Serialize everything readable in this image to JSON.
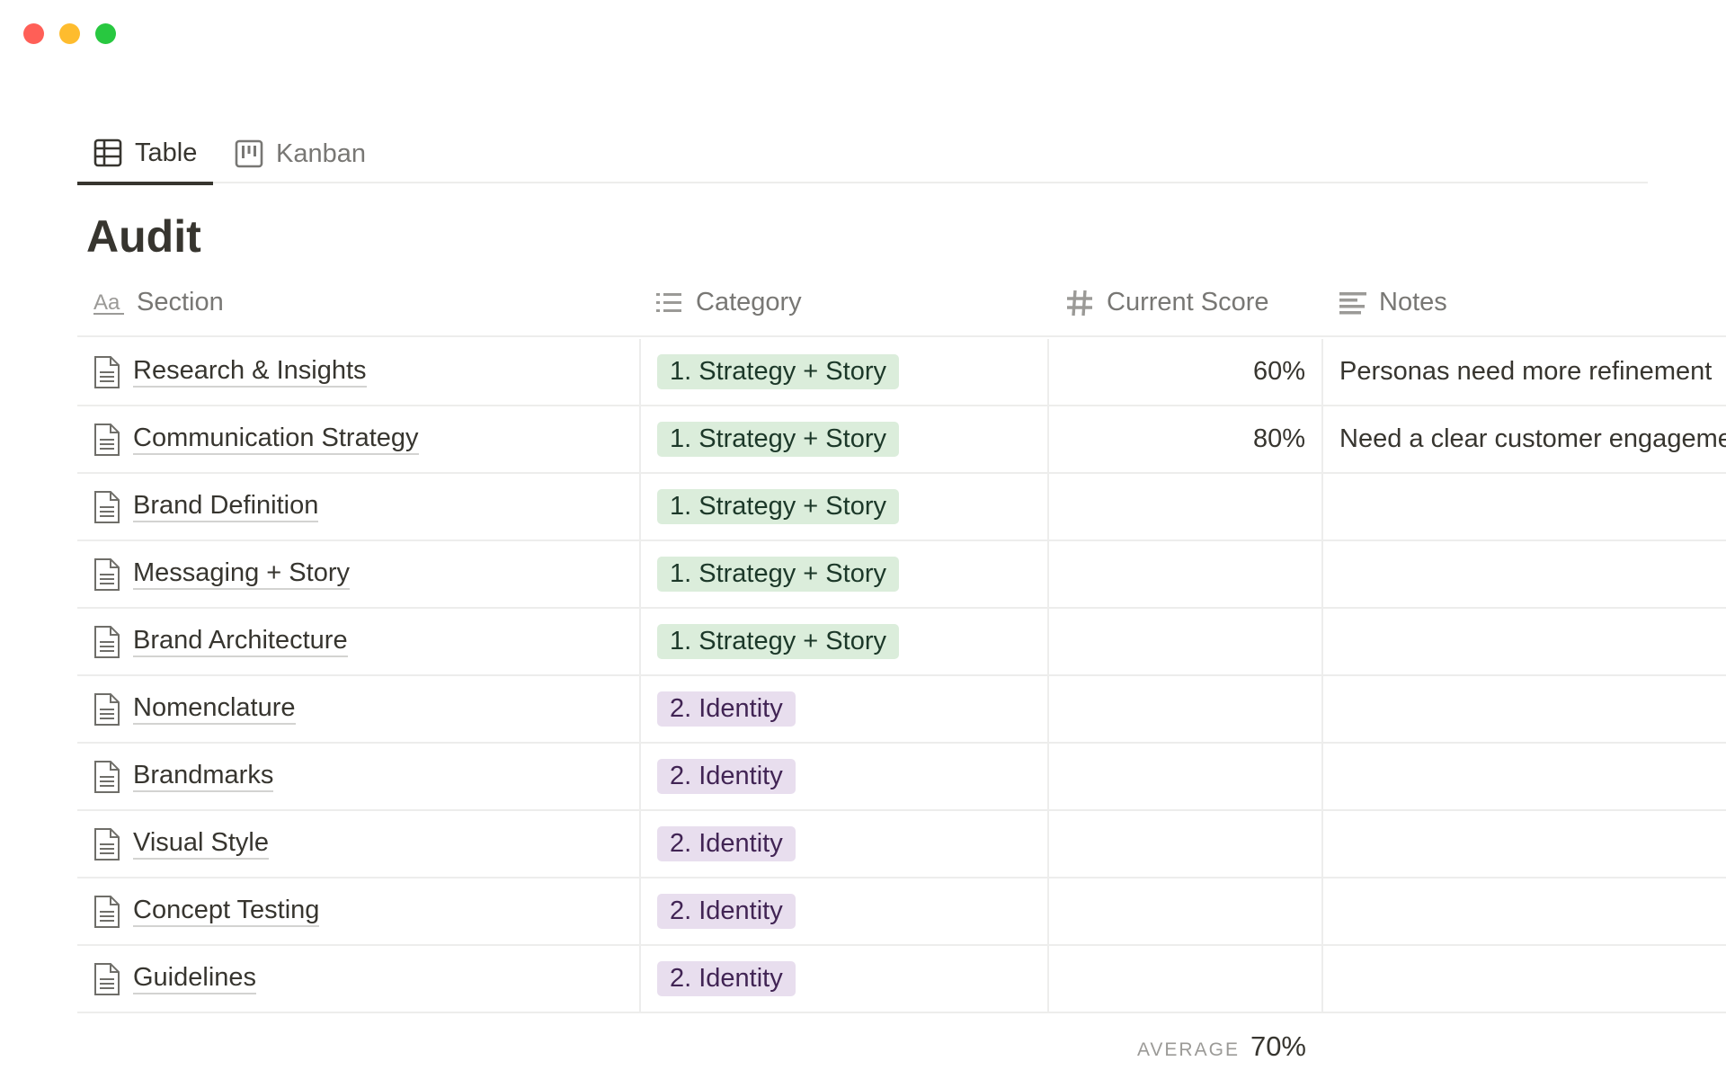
{
  "window": {
    "controls": [
      {
        "name": "close",
        "color": "#ff5f57"
      },
      {
        "name": "minimize",
        "color": "#febc2e"
      },
      {
        "name": "zoom",
        "color": "#28c840"
      }
    ]
  },
  "tabs": [
    {
      "label": "Table",
      "icon": "table-icon",
      "active": true
    },
    {
      "label": "Kanban",
      "icon": "kanban-icon",
      "active": false
    }
  ],
  "title": "Audit",
  "columns": [
    {
      "label": "Section",
      "icon": "text-aa-icon"
    },
    {
      "label": "Category",
      "icon": "list-icon"
    },
    {
      "label": "Current Score",
      "icon": "hash-icon"
    },
    {
      "label": "Notes",
      "icon": "text-lines-icon"
    }
  ],
  "tag_colors": {
    "1. Strategy + Story": {
      "bg": "#dbeddb",
      "fg": "#1c3829"
    },
    "2. Identity": {
      "bg": "#e8deee",
      "fg": "#412454"
    }
  },
  "rows": [
    {
      "section": "Research & Insights",
      "category": "1. Strategy + Story",
      "score": "60%",
      "notes": "Personas need more refinement"
    },
    {
      "section": "Communication Strategy",
      "category": "1. Strategy + Story",
      "score": "80%",
      "notes": "Need a clear customer engagement"
    },
    {
      "section": "Brand Definition",
      "category": "1. Strategy + Story",
      "score": "",
      "notes": ""
    },
    {
      "section": "Messaging + Story",
      "category": "1. Strategy + Story",
      "score": "",
      "notes": ""
    },
    {
      "section": "Brand Architecture",
      "category": "1. Strategy + Story",
      "score": "",
      "notes": ""
    },
    {
      "section": "Nomenclature",
      "category": "2. Identity",
      "score": "",
      "notes": ""
    },
    {
      "section": "Brandmarks",
      "category": "2. Identity",
      "score": "",
      "notes": ""
    },
    {
      "section": "Visual Style",
      "category": "2. Identity",
      "score": "",
      "notes": ""
    },
    {
      "section": "Concept Testing",
      "category": "2. Identity",
      "score": "",
      "notes": ""
    },
    {
      "section": "Guidelines",
      "category": "2. Identity",
      "score": "",
      "notes": ""
    }
  ],
  "footer": {
    "label": "AVERAGE",
    "value": "70%"
  }
}
